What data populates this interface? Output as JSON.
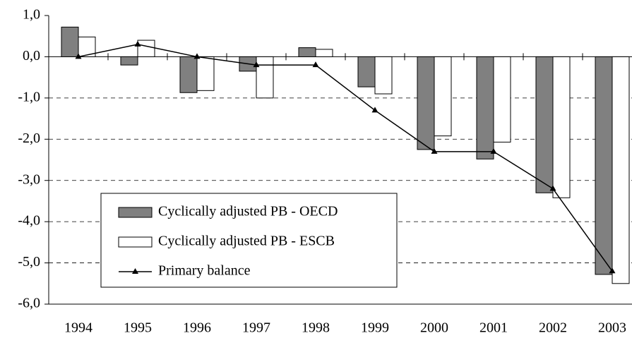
{
  "chart_data": {
    "type": "bar-line",
    "categories": [
      "1994",
      "1995",
      "1996",
      "1997",
      "1998",
      "1999",
      "2000",
      "2001",
      "2002",
      "2003"
    ],
    "series": [
      {
        "name": "Cyclically adjusted PB - OECD",
        "type": "bar",
        "color": "#808080",
        "values": [
          0.72,
          -0.2,
          -0.87,
          -0.35,
          0.22,
          -0.73,
          -2.25,
          -2.48,
          -3.3,
          -5.28
        ]
      },
      {
        "name": "Cyclically adjusted PB - ESCB",
        "type": "bar",
        "color": "#ffffff",
        "values": [
          0.48,
          0.4,
          -0.82,
          -1.0,
          0.18,
          -0.9,
          -1.92,
          -2.07,
          -3.42,
          -5.5
        ]
      },
      {
        "name": "Primary balance",
        "type": "line",
        "color": "#000000",
        "values": [
          0.0,
          0.3,
          0.0,
          -0.2,
          -0.2,
          -1.3,
          -2.3,
          -2.3,
          -3.2,
          -5.2
        ]
      }
    ],
    "ylim": [
      -6,
      1
    ],
    "yticks": [
      {
        "value": 1,
        "label": "1,0"
      },
      {
        "value": 0,
        "label": "0,0"
      },
      {
        "value": -1,
        "label": "-1,0"
      },
      {
        "value": -2,
        "label": "-2,0"
      },
      {
        "value": -3,
        "label": "-3,0"
      },
      {
        "value": -4,
        "label": "-4,0"
      },
      {
        "value": -5,
        "label": "-5,0"
      },
      {
        "value": -6,
        "label": "-6,0"
      }
    ],
    "grid": true
  }
}
